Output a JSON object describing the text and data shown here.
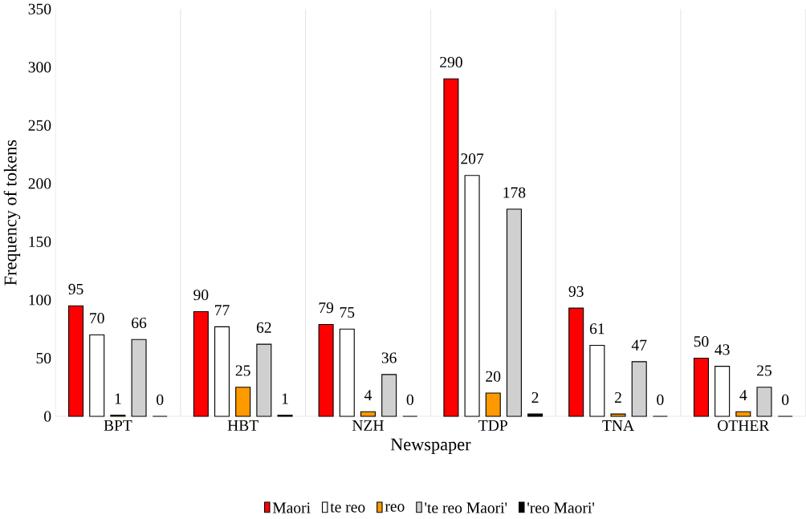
{
  "chart_data": {
    "type": "bar",
    "xlabel": "Newspaper",
    "ylabel": "Frequency of tokens",
    "categories": [
      "BPT",
      "HBT",
      "NZH",
      "TDP",
      "TNA",
      "OTHER"
    ],
    "series": [
      {
        "name": "Maori",
        "color": "#ff0000",
        "values": [
          95,
          90,
          79,
          290,
          93,
          50
        ]
      },
      {
        "name": "te reo",
        "color": "#ffffff",
        "values": [
          70,
          77,
          75,
          207,
          61,
          43
        ]
      },
      {
        "name": "reo",
        "color": "#ff9900",
        "values": [
          1,
          25,
          4,
          20,
          2,
          4
        ]
      },
      {
        "name": "'te reo Maori'",
        "color": "#d0d0d0",
        "values": [
          66,
          62,
          36,
          178,
          47,
          25
        ]
      },
      {
        "name": "'reo Maori'",
        "color": "#000000",
        "values": [
          0,
          1,
          0,
          2,
          0,
          0
        ]
      }
    ],
    "ylim": [
      0,
      350
    ],
    "yticks": [
      0,
      50,
      100,
      150,
      200,
      250,
      300,
      350
    ],
    "grid": "x",
    "legend": "bottom",
    "data_labels": true
  }
}
